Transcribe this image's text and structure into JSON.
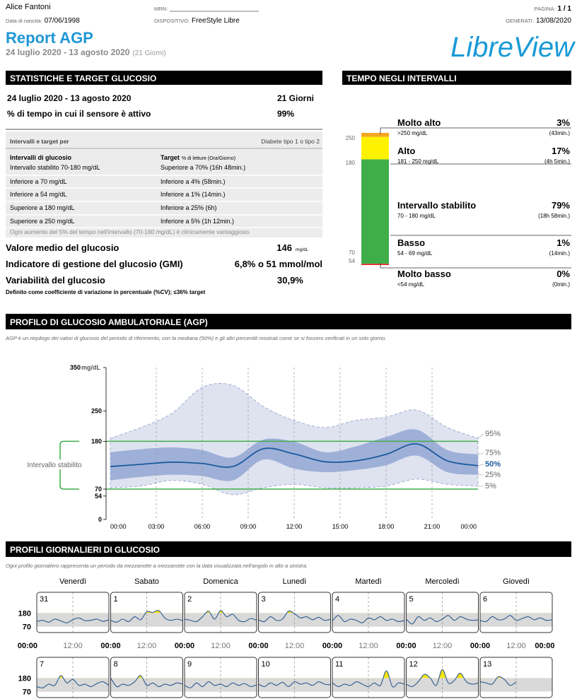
{
  "header": {
    "patient_name": "Alice Fantoni",
    "dob_label": "Data di nascita:",
    "dob": "07/06/1998",
    "mrn_label": "MRN:",
    "device_label": "DISPOSITIVO:",
    "device": "FreeStyle Libre",
    "page_label": "PAGINA:",
    "page": "1 / 1",
    "generated_label": "GENERATI:",
    "generated": "13/08/2020",
    "title": "Report AGP",
    "period": "24 luglio 2020 - 13 agosto 2020",
    "days": "(21 Giorni)",
    "logo": "LibreView"
  },
  "stats": {
    "title": "STATISTICHE E TARGET GLUCOSIO",
    "rows": [
      [
        "24 luglio 2020 - 13 agosto 2020",
        "21 Giorni"
      ],
      [
        "% di tempo in cui il sensore è attivo",
        "99%"
      ]
    ],
    "targets": {
      "header": "Intervalli e target per",
      "diabetes": "Diabete tipo 1 o tipo 2",
      "col1": "Intervalli di glucosio",
      "col2": "Target",
      "col2_note": "% di letture (Ora/Giorno)",
      "rows": [
        [
          "Intervallo stabilito 70-180 mg/dL",
          "Superiore a 70% (16h 48min.)"
        ],
        [
          "Inferiore a 70 mg/dL",
          "Inferiore a 4% (58min.)"
        ],
        [
          "Inferiore a 54 mg/dL",
          "Inferiore a 1% (14min.)"
        ],
        [
          "Superiore a 180 mg/dL",
          "Inferiore a 25% (6h)"
        ],
        [
          "Superiore a 250 mg/dL",
          "Inferiore a 5% (1h 12min.)"
        ]
      ],
      "note": "Ogni aumento del 5% del tempo nell'intervallo (70-180 mg/dL) è clinicamente vantaggioso."
    },
    "metrics": [
      {
        "label": "Valore medio del glucosio",
        "value": "146",
        "unit": "mg/dL"
      },
      {
        "label": "Indicatore di gestione del glucosio (GMI)",
        "value": "6,8% o 51 mmol/mol"
      },
      {
        "label": "Variabilità del glucosio",
        "value": "30,9%"
      }
    ],
    "cv_note": "Definito come coefficiente di variazione in percentuale (%CV); ≤36% target"
  },
  "tir": {
    "title": "TEMPO NEGLI INTERVALLI",
    "scale_labels": [
      "250",
      "180",
      "70",
      "54"
    ],
    "names": [
      "Molto alto",
      "Alto",
      "Intervallo stabilito",
      "Basso",
      "Molto basso"
    ],
    "ranges": [
      ">250 mg/dL",
      "181 - 250 mg/dL",
      "70 - 180 mg/dL",
      "54 - 69 mg/dL",
      "<54 mg/dL"
    ],
    "values": [
      3,
      17,
      79,
      1,
      0
    ],
    "value_labels": [
      "3%",
      "17%",
      "79%",
      "1%",
      "0%"
    ],
    "times": [
      "(43min.)",
      "(4h 5min.)",
      "(18h 58min.)",
      "(14min.)",
      "(0min.)"
    ],
    "colors": [
      "#f5a623",
      "#fff200",
      "#3fae49",
      "#e8262b",
      "#a3161a"
    ]
  },
  "agp": {
    "title": "PROFILO DI GLUCOSIO AMBULATORIALE (AGP)",
    "description": "AGP è un riepilogo dei valori di glucosio del periodo di riferimento, con la mediana (50%) e gli altri percentili mostrati come se si fossero verificati in un solo giorno.",
    "target_label": "Intervallo stabilito",
    "unit": "mg/dL",
    "x": [
      0,
      2,
      4,
      6,
      8,
      10,
      12,
      14,
      16,
      18,
      20,
      22,
      24
    ],
    "xlim": [
      0,
      24
    ],
    "xticks": [
      {
        "value": 0,
        "label": "00:00"
      },
      {
        "value": 3,
        "label": "03:00"
      },
      {
        "value": 6,
        "label": "06:00"
      },
      {
        "value": 9,
        "label": "09:00"
      },
      {
        "value": 12,
        "label": "12:00"
      },
      {
        "value": 15,
        "label": "15:00"
      },
      {
        "value": 18,
        "label": "18:00"
      },
      {
        "value": 21,
        "label": "21:00"
      },
      {
        "value": 24,
        "label": "00:00"
      }
    ],
    "ylim": [
      0,
      350
    ],
    "yticks": [
      0,
      54,
      70,
      180,
      250,
      350
    ],
    "target_range": [
      70,
      180
    ],
    "target_color": "#3fae49",
    "outer_color": "#dfe3f0",
    "inner_color": "#9fb0d8",
    "median_color": "#1d5a9e",
    "series": [
      {
        "name": "95%",
        "values": [
          187,
          212,
          244,
          304,
          309,
          260,
          228,
          212,
          228,
          236,
          252,
          212,
          187
        ]
      },
      {
        "name": "75%",
        "values": [
          155,
          162,
          166,
          160,
          143,
          184,
          179,
          155,
          168,
          190,
          207,
          160,
          150
        ]
      },
      {
        "name": "50%",
        "values": [
          122,
          127,
          132,
          129,
          122,
          163,
          151,
          133,
          135,
          150,
          174,
          135,
          124
        ]
      },
      {
        "name": "25%",
        "values": [
          90,
          98,
          103,
          100,
          90,
          138,
          117,
          109,
          114,
          125,
          147,
          109,
          103
        ]
      },
      {
        "name": "5%",
        "values": [
          73,
          77,
          90,
          81,
          57,
          73,
          81,
          73,
          73,
          77,
          93,
          81,
          77
        ]
      }
    ]
  },
  "daily": {
    "title": "PROFILI GIORNALIERI DI GLUCOSIO",
    "description": "Ogni profilo giornaliero rappresenta un periodo da mezzanotte a mezzanotte con la data visualizzata nell'angolo in alto a sinistra.",
    "weekdays": [
      "Venerdì",
      "Sabato",
      "Domenica",
      "Lunedì",
      "Martedì",
      "Mercoledì",
      "Giovedì"
    ],
    "x_labels": [
      "00:00",
      "12:00"
    ],
    "x": [
      0,
      2,
      4,
      6,
      8,
      10,
      12,
      14,
      16,
      18,
      20,
      22,
      24
    ],
    "xlim": [
      0,
      24
    ],
    "ylim": [
      20,
      350
    ],
    "yticks": [
      180,
      70
    ],
    "target_range": [
      70,
      180
    ],
    "line_color": "#2b5a8f",
    "target_fill": "#d9d9d9",
    "high_fill": "#f5e50c",
    "low_fill": "#e0312b",
    "days": [
      {
        "label": "31",
        "values": [
          110,
          120,
          105,
          130,
          115,
          100,
          125,
          140,
          118,
          120,
          130,
          112,
          125
        ]
      },
      {
        "label": "1",
        "values": [
          120,
          105,
          130,
          110,
          150,
          125,
          190,
          185,
          200,
          140,
          120,
          130,
          118
        ]
      },
      {
        "label": "2",
        "values": [
          130,
          120,
          110,
          150,
          195,
          130,
          200,
          150,
          170,
          120,
          110,
          135,
          120
        ]
      },
      {
        "label": "3",
        "values": [
          125,
          110,
          150,
          120,
          130,
          195,
          175,
          140,
          150,
          125,
          145,
          120,
          130
        ]
      },
      {
        "label": "4",
        "values": [
          115,
          160,
          110,
          130,
          120,
          100,
          140,
          125,
          150,
          120,
          130,
          110,
          120
        ]
      },
      {
        "label": "5",
        "values": [
          130,
          90,
          150,
          120,
          140,
          110,
          130,
          160,
          120,
          150,
          130,
          120,
          125
        ]
      },
      {
        "label": "6",
        "values": [
          120,
          110,
          150,
          125,
          130,
          160,
          120,
          135,
          150,
          125,
          140,
          120,
          125
        ]
      },
      {
        "label": "7",
        "values": [
          110,
          100,
          130,
          120,
          200,
          140,
          170,
          120,
          130,
          110,
          135,
          150,
          120
        ]
      },
      {
        "label": "8",
        "values": [
          180,
          110,
          130,
          120,
          150,
          200,
          120,
          140,
          110,
          130,
          120,
          140,
          130
        ]
      },
      {
        "label": "9",
        "values": [
          120,
          100,
          140,
          110,
          150,
          120,
          130,
          110,
          140,
          120,
          135,
          110,
          125
        ]
      },
      {
        "label": "10",
        "values": [
          130,
          110,
          140,
          120,
          145,
          110,
          150,
          130,
          140,
          120,
          150,
          130,
          125
        ]
      },
      {
        "label": "11",
        "values": [
          140,
          110,
          130,
          120,
          150,
          130,
          110,
          140,
          120,
          240,
          110,
          140,
          130
        ]
      },
      {
        "label": "12",
        "values": [
          130,
          110,
          150,
          210,
          180,
          120,
          250,
          140,
          160,
          220,
          150,
          130,
          140
        ]
      },
      {
        "label": "13",
        "values": [
          150,
          140,
          130,
          190,
          170,
          120,
          150,
          null,
          null,
          null,
          null,
          null,
          null
        ]
      }
    ]
  }
}
